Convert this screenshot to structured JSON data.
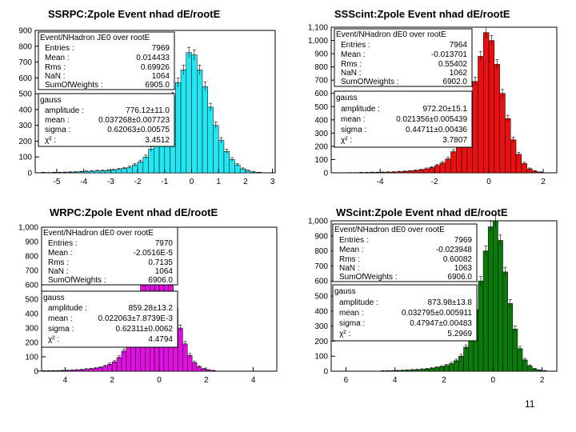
{
  "page": {
    "number": "11"
  },
  "chart_data": [
    {
      "type": "bar",
      "title": "SSRPC:Zpole Event nhad dE/rootE",
      "color": "#22e6f2",
      "x": [
        -5.5,
        -5.3,
        -5.1,
        -4.9,
        -4.7,
        -4.5,
        -4.3,
        -4.1,
        -3.9,
        -3.7,
        -3.5,
        -3.3,
        -3.1,
        -2.9,
        -2.7,
        -2.5,
        -2.3,
        -2.1,
        -1.9,
        -1.7,
        -1.5,
        -1.3,
        -1.1,
        -0.9,
        -0.7,
        -0.5,
        -0.3,
        -0.1,
        0.1,
        0.3,
        0.5,
        0.7,
        0.9,
        1.1,
        1.3,
        1.5,
        1.7,
        1.9,
        2.1,
        2.3,
        2.5
      ],
      "values": [
        2,
        1,
        2,
        2,
        3,
        4,
        5,
        6,
        8,
        10,
        12,
        13,
        15,
        18,
        22,
        28,
        35,
        50,
        70,
        100,
        150,
        215,
        290,
        380,
        480,
        570,
        650,
        760,
        745,
        650,
        545,
        415,
        300,
        205,
        135,
        85,
        50,
        25,
        12,
        5,
        2
      ],
      "xlim": [
        -5.8,
        3.1
      ],
      "ylim": [
        0,
        900
      ],
      "xticks": [
        -5,
        -4,
        -3,
        -2,
        -1,
        0,
        1,
        2,
        3
      ],
      "xtick_labels": [
        "-5",
        "-4",
        "-3",
        "-2",
        "-1",
        "0",
        "1",
        "2",
        "3"
      ],
      "yticks": [
        0,
        100,
        200,
        300,
        400,
        500,
        600,
        700,
        800,
        900
      ],
      "ytick_labels": [
        "0",
        "100",
        "200",
        "300",
        "400",
        "500",
        "600",
        "700",
        "800",
        "900"
      ],
      "stats_box": {
        "header": "Event/NHadron JE0 over rootE",
        "rows": [
          {
            "label": "Entries :",
            "value": "7969"
          },
          {
            "label": "Mean :",
            "value": "0.014433"
          },
          {
            "label": "Rms :",
            "value": "0.69926"
          },
          {
            "label": "NaN :",
            "value": "1064"
          },
          {
            "label": "SumOfWeights :",
            "value": "6905.0"
          }
        ]
      },
      "fit_box": {
        "header": "gauss",
        "rows": [
          {
            "label": "amplitude :",
            "value": "776.12±11.0"
          },
          {
            "label": "mean :",
            "value": "0.037268±0.007723"
          },
          {
            "label": "sigma :",
            "value": "0.62063±0.00575"
          },
          {
            "label": "χ² :",
            "value": "3.4512"
          }
        ]
      }
    },
    {
      "type": "bar",
      "title": "SSScint:Zpole Event nhad dE/rootE",
      "color": "#e81010",
      "x": [
        -5.1,
        -4.9,
        -4.7,
        -4.5,
        -4.3,
        -4.1,
        -3.9,
        -3.7,
        -3.5,
        -3.3,
        -3.1,
        -2.9,
        -2.7,
        -2.5,
        -2.3,
        -2.1,
        -1.9,
        -1.7,
        -1.5,
        -1.3,
        -1.1,
        -0.9,
        -0.7,
        -0.5,
        -0.3,
        -0.1,
        0.1,
        0.3,
        0.5,
        0.7,
        0.9,
        1.1,
        1.3,
        1.5,
        1.7,
        1.9
      ],
      "values": [
        1,
        1,
        2,
        2,
        3,
        3,
        4,
        5,
        6,
        8,
        10,
        13,
        17,
        22,
        30,
        40,
        55,
        75,
        105,
        160,
        240,
        350,
        500,
        690,
        880,
        1060,
        1000,
        820,
        600,
        410,
        250,
        140,
        70,
        30,
        12,
        5
      ],
      "xlim": [
        -5.8,
        2.5
      ],
      "ylim": [
        0,
        1100
      ],
      "xticks": [
        -4,
        -2,
        0,
        2
      ],
      "xtick_labels": [
        "-4",
        "-2",
        "0",
        "2"
      ],
      "yticks": [
        0,
        100,
        200,
        300,
        400,
        500,
        600,
        700,
        800,
        900,
        1000,
        1100
      ],
      "ytick_labels": [
        "0",
        "100",
        "200",
        "300",
        "400",
        "500",
        "600",
        "700",
        "800",
        "900",
        "1,000",
        "1,100"
      ],
      "stats_box": {
        "header": "Event/NHadron dE0 over rootE",
        "rows": [
          {
            "label": "Entries :",
            "value": "7964"
          },
          {
            "label": "Mean :",
            "value": "-0.013701"
          },
          {
            "label": "Rms :",
            "value": "0.55402"
          },
          {
            "label": "NaN :",
            "value": "1062"
          },
          {
            "label": "SumOfWeights :",
            "value": "6902.0"
          }
        ]
      },
      "fit_box": {
        "header": "gauss",
        "rows": [
          {
            "label": "amplitude :",
            "value": "972.20±15.1"
          },
          {
            "label": "mean :",
            "value": "0.021356±0.005439"
          },
          {
            "label": "sigma :",
            "value": "0.44711±0.00436"
          },
          {
            "label": "χ² :",
            "value": "3.7807"
          }
        ]
      }
    },
    {
      "type": "bar",
      "title": "WRPC:Zpole Event nhad dE/rootE",
      "color": "#e010e0",
      "x": [
        -5.1,
        -4.9,
        -4.7,
        -4.5,
        -4.3,
        -4.1,
        -3.9,
        -3.7,
        -3.5,
        -3.3,
        -3.1,
        -2.9,
        -2.7,
        -2.5,
        -2.3,
        -2.1,
        -1.9,
        -1.7,
        -1.5,
        -1.3,
        -1.1,
        -0.9,
        -0.7,
        -0.5,
        -0.3,
        -0.1,
        0.1,
        0.3,
        0.5,
        0.7,
        0.9,
        1.1,
        1.3,
        1.5,
        1.7,
        1.9,
        2.1,
        2.3
      ],
      "values": [
        1,
        2,
        2,
        3,
        3,
        4,
        5,
        6,
        8,
        10,
        13,
        16,
        20,
        26,
        35,
        48,
        65,
        95,
        140,
        220,
        320,
        450,
        620,
        800,
        920,
        960,
        930,
        800,
        620,
        440,
        300,
        190,
        110,
        60,
        30,
        15,
        8,
        4
      ],
      "xlim": [
        -5.0,
        5.0
      ],
      "ylim": [
        0,
        1000
      ],
      "xticks": [
        -4,
        -2,
        0,
        2,
        4
      ],
      "xtick_labels": [
        "4",
        "2",
        "0",
        "2",
        "4"
      ],
      "yticks": [
        0,
        100,
        200,
        300,
        400,
        500,
        600,
        700,
        800,
        900,
        1000
      ],
      "ytick_labels": [
        "0",
        "100",
        "200",
        "300",
        "400",
        "500",
        "600",
        "700",
        "800",
        "900",
        "1,000"
      ],
      "stats_box": {
        "header": "Event/NHadron dE0 over rootE",
        "rows": [
          {
            "label": "Entries :",
            "value": "7970"
          },
          {
            "label": "Mean :",
            "value": "-2.0516E-5"
          },
          {
            "label": "Rms :",
            "value": "0.7135"
          },
          {
            "label": "NaN :",
            "value": "1064"
          },
          {
            "label": "SumOfWeights :",
            "value": "6906.0"
          }
        ]
      },
      "fit_box": {
        "header": "gauss",
        "rows": [
          {
            "label": "amplitude :",
            "value": "859.28±13.2"
          },
          {
            "label": "mean :",
            "value": "0.022063±7.8739E-3"
          },
          {
            "label": "sigma :",
            "value": "0.62311±0.0062"
          },
          {
            "label": "χ² :",
            "value": "4.4794"
          }
        ]
      }
    },
    {
      "type": "bar",
      "title": "WScint:Zpole Event nhad dE/rootE",
      "color": "#0a7a0a",
      "x": [
        -4.5,
        -4.3,
        -4.1,
        -3.9,
        -3.7,
        -3.5,
        -3.3,
        -3.1,
        -2.9,
        -2.7,
        -2.5,
        -2.3,
        -2.1,
        -1.9,
        -1.7,
        -1.5,
        -1.3,
        -1.1,
        -0.9,
        -0.7,
        -0.5,
        -0.3,
        -0.1,
        0.1,
        0.3,
        0.5,
        0.7,
        0.9,
        1.1,
        1.3,
        1.5,
        1.7,
        1.9,
        2.1
      ],
      "values": [
        2,
        2,
        3,
        4,
        5,
        6,
        8,
        10,
        12,
        15,
        19,
        24,
        30,
        38,
        50,
        70,
        100,
        160,
        260,
        410,
        600,
        800,
        960,
        1000,
        870,
        660,
        450,
        280,
        150,
        75,
        35,
        15,
        6,
        3
      ],
      "xlim": [
        -6.6,
        2.6
      ],
      "ylim": [
        0,
        1000
      ],
      "xticks": [
        -6,
        -4,
        -2,
        0,
        2
      ],
      "xtick_labels": [
        "6",
        "4",
        "2",
        "0",
        "2"
      ],
      "yticks": [
        0,
        100,
        200,
        300,
        400,
        500,
        600,
        700,
        800,
        900,
        1000
      ],
      "ytick_labels": [
        "0",
        "100",
        "200",
        "300",
        "400",
        "500",
        "600",
        "700",
        "800",
        "900",
        "1,000"
      ],
      "stats_box": {
        "header": "Event/NHadron dE0 over rootE",
        "rows": [
          {
            "label": "Entries :",
            "value": "7969"
          },
          {
            "label": "Mean :",
            "value": "-0.023948"
          },
          {
            "label": "Rms :",
            "value": "0.60082"
          },
          {
            "label": "NaN :",
            "value": "1063"
          },
          {
            "label": "SumOfWeights :",
            "value": "6906.0"
          }
        ]
      },
      "fit_box": {
        "header": "gauss",
        "rows": [
          {
            "label": "amplitude :",
            "value": "873.98±13.8"
          },
          {
            "label": "mean :",
            "value": "0.032795±0.005911"
          },
          {
            "label": "sigma :",
            "value": "0.47947±0.00483"
          },
          {
            "label": "χ² :",
            "value": "5.2969"
          }
        ]
      }
    }
  ]
}
